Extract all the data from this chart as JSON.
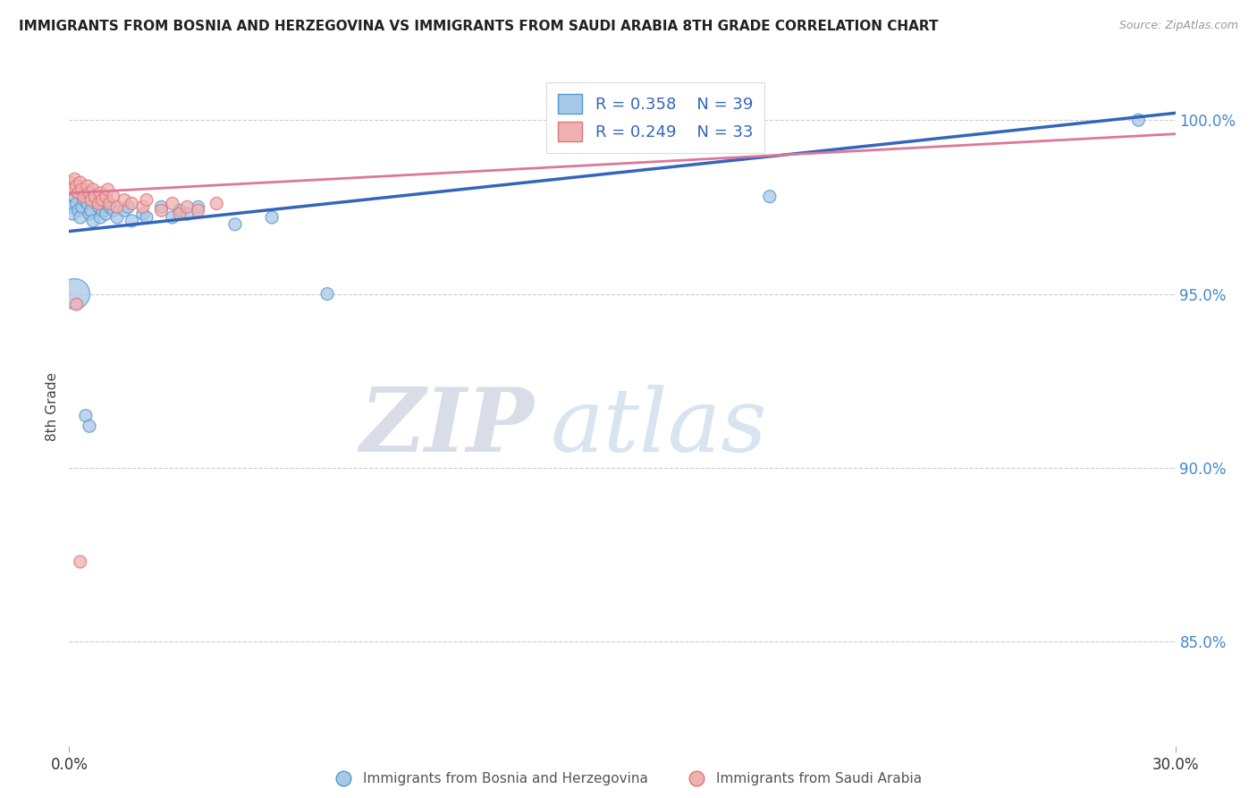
{
  "title": "IMMIGRANTS FROM BOSNIA AND HERZEGOVINA VS IMMIGRANTS FROM SAUDI ARABIA 8TH GRADE CORRELATION CHART",
  "source": "Source: ZipAtlas.com",
  "ylabel": "8th Grade",
  "series": [
    {
      "name": "Immigrants from Bosnia and Herzegovina",
      "color": "#a8c8e8",
      "edge_color": "#5599cc",
      "line_color": "#3366bb",
      "R": 0.358,
      "N": 39,
      "x": [
        0.05,
        0.1,
        0.15,
        0.2,
        0.25,
        0.3,
        0.35,
        0.4,
        0.5,
        0.55,
        0.6,
        0.65,
        0.7,
        0.8,
        0.85,
        0.9,
        1.0,
        1.05,
        1.1,
        1.2,
        1.3,
        1.5,
        1.6,
        1.7,
        2.0,
        2.1,
        2.5,
        2.8,
        3.0,
        3.2,
        3.5,
        0.15,
        4.5,
        5.5,
        7.0,
        19.0,
        29.0,
        0.45,
        0.55
      ],
      "y": [
        97.5,
        97.3,
        97.8,
        97.6,
        97.4,
        97.2,
        97.5,
        97.7,
        97.6,
        97.3,
        97.4,
        97.1,
        97.8,
        97.5,
        97.2,
        97.4,
        97.3,
        97.6,
        97.5,
        97.4,
        97.2,
        97.4,
        97.5,
        97.1,
        97.3,
        97.2,
        97.5,
        97.2,
        97.4,
        97.3,
        97.5,
        95.0,
        97.0,
        97.2,
        95.0,
        97.8,
        100.0,
        91.5,
        91.2
      ],
      "size": [
        100,
        100,
        100,
        100,
        100,
        100,
        100,
        100,
        100,
        100,
        100,
        100,
        100,
        100,
        100,
        100,
        100,
        100,
        100,
        100,
        100,
        100,
        100,
        100,
        100,
        100,
        100,
        100,
        100,
        100,
        100,
        600,
        100,
        100,
        100,
        100,
        100,
        100,
        100
      ]
    },
    {
      "name": "Immigrants from Saudi Arabia",
      "color": "#f0b0b0",
      "edge_color": "#dd7777",
      "line_color": "#dd7799",
      "R": 0.249,
      "N": 33,
      "x": [
        0.05,
        0.1,
        0.15,
        0.2,
        0.25,
        0.3,
        0.35,
        0.4,
        0.5,
        0.55,
        0.6,
        0.65,
        0.7,
        0.8,
        0.85,
        0.9,
        1.0,
        1.05,
        1.1,
        1.2,
        1.3,
        1.5,
        1.7,
        2.0,
        2.1,
        2.5,
        2.8,
        3.0,
        3.2,
        3.5,
        4.0,
        0.2,
        0.3
      ],
      "y": [
        98.2,
        98.0,
        98.3,
        98.1,
        97.9,
        98.2,
        98.0,
        97.8,
        98.1,
        97.9,
        97.7,
        98.0,
        97.8,
        97.6,
        97.9,
        97.7,
        97.8,
        98.0,
        97.6,
        97.8,
        97.5,
        97.7,
        97.6,
        97.5,
        97.7,
        97.4,
        97.6,
        97.3,
        97.5,
        97.4,
        97.6,
        94.7,
        87.3
      ],
      "size": [
        100,
        100,
        100,
        100,
        100,
        100,
        100,
        100,
        100,
        100,
        100,
        100,
        100,
        100,
        100,
        100,
        100,
        100,
        100,
        100,
        100,
        100,
        100,
        100,
        100,
        100,
        100,
        100,
        100,
        100,
        100,
        100,
        100
      ]
    }
  ],
  "xlim": [
    0.0,
    30.0
  ],
  "ylim": [
    82.0,
    101.5
  ],
  "yticks": [
    85.0,
    90.0,
    95.0,
    100.0
  ],
  "ytick_labels": [
    "85.0%",
    "90.0%",
    "95.0%",
    "100.0%"
  ],
  "grid_color": "#cccccc",
  "background_color": "#ffffff",
  "watermark_zip": "ZIP",
  "watermark_atlas": "atlas",
  "title_fontsize": 11,
  "legend_fontsize": 13
}
